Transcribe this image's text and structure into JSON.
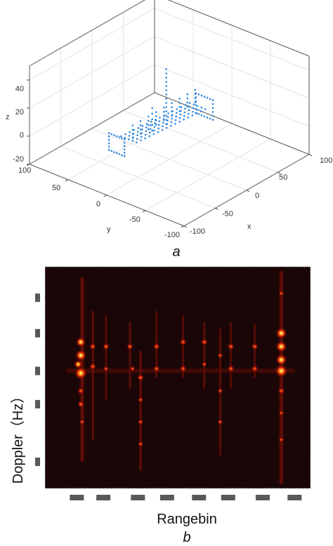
{
  "chart_data": [
    {
      "type": "scatter",
      "subfigure_label": "a",
      "xlabel": "x",
      "ylabel": "y",
      "zlabel": "z",
      "xlim": [
        -100,
        100
      ],
      "ylim": [
        -100,
        100
      ],
      "zlim": [
        -20,
        50
      ],
      "x_ticks": [
        "-100",
        "-50",
        "0",
        "50",
        "100"
      ],
      "y_ticks": [
        "100",
        "50",
        "0",
        "-50",
        "-100"
      ],
      "z_ticks": [
        "40",
        "20",
        "0",
        "-20"
      ],
      "grid": true,
      "marker_color": "#2e86de"
    },
    {
      "type": "heatmap",
      "subfigure_label": "b",
      "xlabel": "Rangebin",
      "ylabel": "Doppler（Hz）",
      "colormap": "hot",
      "x_tick_labels": [
        "",
        "",
        "",
        "",
        "",
        "",
        "",
        ""
      ],
      "y_tick_labels": [
        "",
        "",
        "",
        "",
        ""
      ],
      "background_color": "#1a0606"
    }
  ]
}
